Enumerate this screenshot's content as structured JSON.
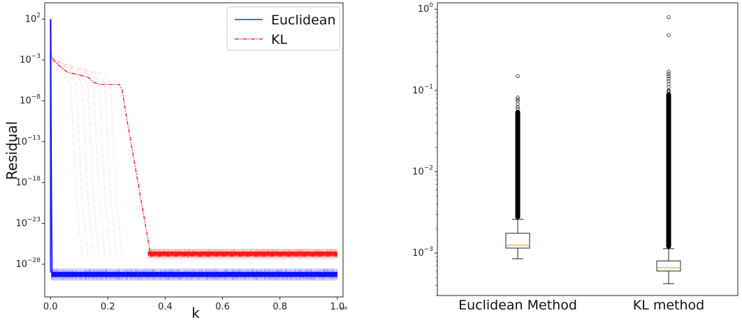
{
  "chart_data": [
    {
      "type": "line",
      "title": "",
      "xlabel": "k",
      "ylabel": "Residual",
      "x_scale_note": "1e6",
      "y_scale": "log",
      "xlim": [
        -0.02,
        1.02
      ],
      "ylim": [
        1e-32,
        10000.0
      ],
      "x_ticks": [
        0.0,
        0.2,
        0.4,
        0.6,
        0.8,
        1.0
      ],
      "x_tick_labels": [
        "0.0",
        "0.2",
        "0.4",
        "0.6",
        "0.8",
        "1.0"
      ],
      "y_ticks": [
        100,
        0.001,
        1e-08,
        1e-13,
        1e-18,
        1e-23,
        1e-28
      ],
      "y_tick_labels": [
        {
          "base": "10",
          "exp": "2"
        },
        {
          "base": "10",
          "exp": "−3"
        },
        {
          "base": "10",
          "exp": "−8"
        },
        {
          "base": "10",
          "exp": "−13"
        },
        {
          "base": "10",
          "exp": "−18"
        },
        {
          "base": "10",
          "exp": "−23"
        },
        {
          "base": "10",
          "exp": "−28"
        }
      ],
      "legend_position": "top-right",
      "series": [
        {
          "name": "Euclidean",
          "color": "#0000ff",
          "style": "solid",
          "x": [
            0,
            0.002,
            0.004,
            0.006,
            0.01,
            1.0
          ],
          "y": [
            100,
            1e-05,
            1e-20,
            1e-29,
            1e-29,
            1e-29
          ],
          "noise_band": [
            1e-30,
            3e-29
          ]
        },
        {
          "name": "KL",
          "color": "#ff0000",
          "style": "dashdot",
          "x": [
            0,
            0.003,
            0.01,
            0.03,
            0.06,
            0.1,
            0.13,
            0.15,
            0.17,
            0.2,
            0.22,
            0.24,
            0.25,
            0.26,
            0.28,
            0.3,
            0.32,
            0.34,
            0.35,
            1.0
          ],
          "y": [
            100,
            0.003,
            0.001,
            0.0002,
            3e-05,
            1.5e-05,
            8e-06,
            2e-06,
            1e-06,
            1e-06,
            1e-06,
            1e-06,
            2e-07,
            1e-09,
            1e-13,
            1e-17,
            1e-21,
            1e-25,
            1e-27,
            1e-27
          ],
          "noise_band": [
            5e-28,
            8e-27
          ]
        }
      ]
    },
    {
      "type": "box",
      "title": "",
      "xlabel": "",
      "ylabel": "",
      "y_scale": "log",
      "ylim": [
        0.0003,
        1.2
      ],
      "y_ticks": [
        1,
        0.1,
        0.01,
        0.001
      ],
      "y_tick_labels": [
        {
          "base": "10",
          "exp": "0"
        },
        {
          "base": "10",
          "exp": "−1"
        },
        {
          "base": "10",
          "exp": "−2"
        },
        {
          "base": "10",
          "exp": "−3"
        }
      ],
      "categories": [
        "Euclidean Method",
        "KL method"
      ],
      "median_color": "#ff8c00",
      "boxes": [
        {
          "label": "Euclidean Method",
          "whisker_low": 0.00085,
          "q1": 0.00115,
          "median": 0.00125,
          "q3": 0.00175,
          "whisker_high": 0.0026,
          "dense_outliers": [
            0.0026,
            0.058
          ],
          "outliers": [
            0.15,
            0.082,
            0.078,
            0.074,
            0.068,
            0.063,
            0.06
          ]
        },
        {
          "label": "KL method",
          "whisker_low": 0.00042,
          "q1": 0.0006,
          "median": 0.00066,
          "q3": 0.0008,
          "whisker_high": 0.00113,
          "dense_outliers": [
            0.00113,
            0.095
          ],
          "outliers": [
            0.8,
            0.48,
            0.17,
            0.16,
            0.15,
            0.14,
            0.13,
            0.12,
            0.11,
            0.1,
            0.098,
            0.096
          ]
        }
      ]
    }
  ]
}
